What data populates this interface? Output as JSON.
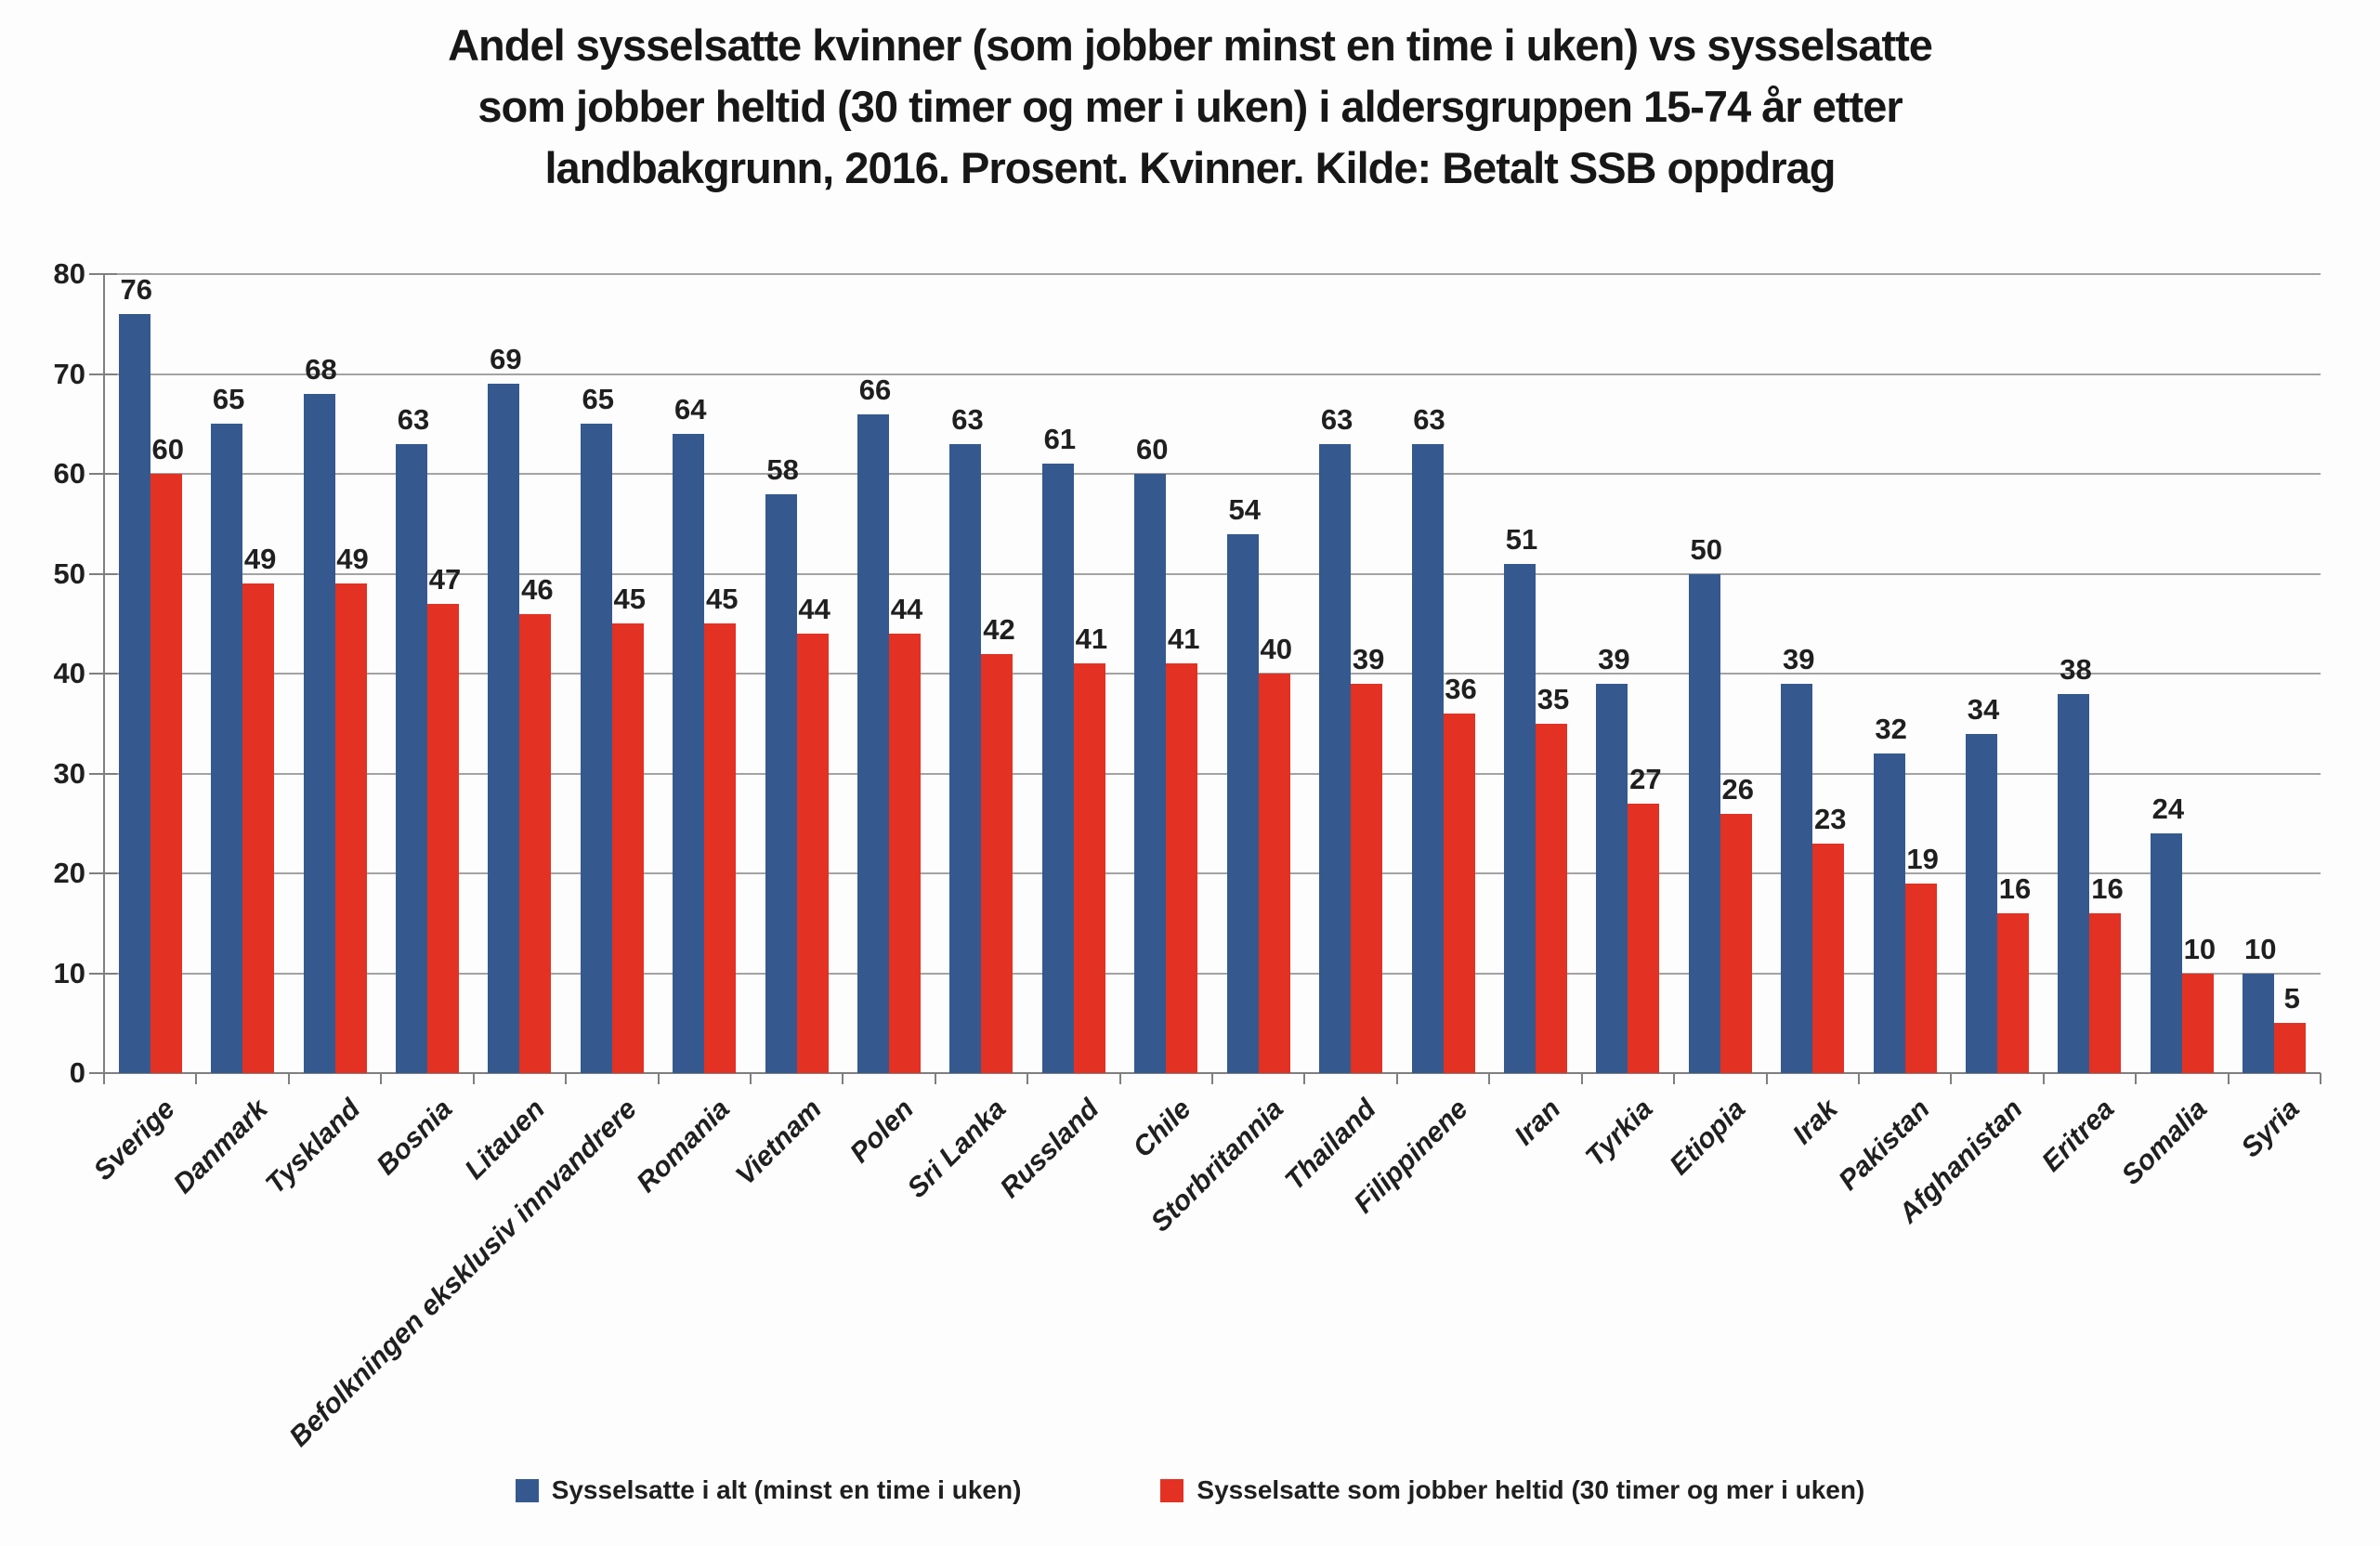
{
  "title": {
    "lines": [
      "Andel sysselsatte kvinner (som jobber minst en time i uken) vs sysselsatte",
      "som jobber heltid (30 timer og mer i uken) i aldersgruppen 15-74 år etter",
      "landbakgrunn, 2016. Prosent. Kvinner. Kilde: Betalt SSB  oppdrag"
    ]
  },
  "colors": {
    "series_blue": "#35598E",
    "series_red": "#E33123",
    "gridline": "#a3a3a3",
    "axis": "#7f7f7f",
    "text": "#1f1f1f"
  },
  "chart_data": {
    "type": "bar",
    "title": "Andel sysselsatte kvinner (som jobber minst en time i uken) vs sysselsatte som jobber heltid (30 timer og mer i uken) i aldersgruppen 15-74 år etter landbakgrunn, 2016. Prosent. Kvinner. Kilde: Betalt SSB oppdrag",
    "xlabel": "",
    "ylabel": "",
    "ylim": [
      0,
      80
    ],
    "ytick_step": 10,
    "ytick_labels": [
      "0",
      "10",
      "20",
      "30",
      "40",
      "50",
      "60",
      "70",
      "80"
    ],
    "grid": true,
    "legend_position": "bottom",
    "categories": [
      "Sverige",
      "Danmark",
      "Tyskland",
      "Bosnia",
      "Litauen",
      "Befolkningen eksklusiv innvandrere",
      "Romania",
      "Vietnam",
      "Polen",
      "Sri Lanka",
      "Russland",
      "Chile",
      "Storbritannia",
      "Thailand",
      "Filippinene",
      "Iran",
      "Tyrkia",
      "Etiopia",
      "Irak",
      "Pakistan",
      "Afghanistan",
      "Eritrea",
      "Somalia",
      "Syria"
    ],
    "series": [
      {
        "name": "Sysselsatte i alt (minst en time i uken)",
        "color": "#35598E",
        "values": [
          76,
          65,
          68,
          63,
          69,
          65,
          64,
          58,
          66,
          63,
          61,
          60,
          54,
          63,
          63,
          51,
          39,
          50,
          39,
          32,
          34,
          38,
          24,
          10
        ]
      },
      {
        "name": "Sysselsatte som jobber heltid (30 timer og mer i uken)",
        "color": "#E33123",
        "values": [
          60,
          49,
          49,
          47,
          46,
          45,
          45,
          44,
          44,
          42,
          41,
          41,
          40,
          39,
          36,
          35,
          27,
          26,
          23,
          19,
          16,
          16,
          10,
          5
        ]
      }
    ]
  }
}
